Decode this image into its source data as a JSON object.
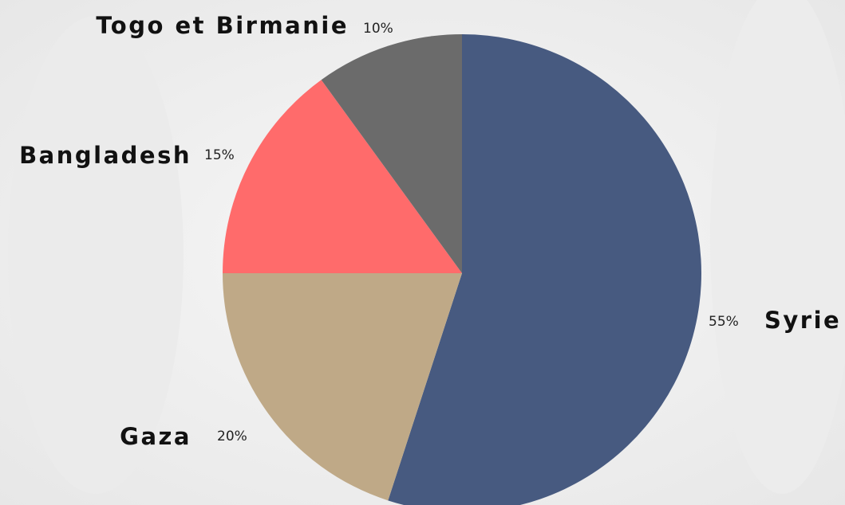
{
  "chart_data": {
    "type": "pie",
    "categories": [
      "Syrie",
      "Gaza",
      "Bangladesh",
      "Togo et Birmanie"
    ],
    "values": [
      55,
      20,
      15,
      10
    ],
    "value_labels": [
      "55%",
      "20%",
      "15%",
      "10%"
    ],
    "colors": [
      "#475a80",
      "#bfa987",
      "#ff6b6b",
      "#6b6b6b"
    ]
  }
}
